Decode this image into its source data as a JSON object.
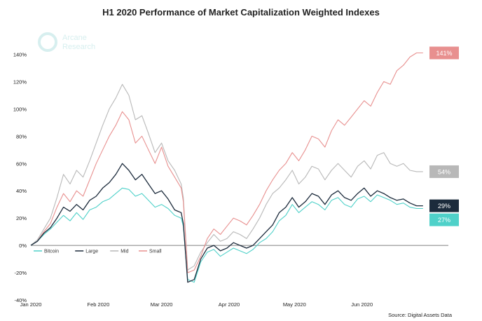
{
  "chart_data": {
    "type": "line",
    "title": "H1 2020 Performance of Market Capitalization Weighted Indexes",
    "source": "Source: Digital Assets Data",
    "watermark": [
      "Arcane",
      "Research"
    ],
    "xlabel": "",
    "ylabel": "",
    "ylim": [
      -40,
      150
    ],
    "yticks": [
      -40,
      -20,
      0,
      20,
      40,
      60,
      80,
      100,
      120,
      140
    ],
    "ytick_labels": [
      "-40%",
      "-20%",
      "0%",
      "20%",
      "40%",
      "60%",
      "80%",
      "100%",
      "120%",
      "140%"
    ],
    "xlim": [
      0,
      182
    ],
    "xticks": [
      0,
      31,
      60,
      91,
      121,
      152
    ],
    "xtick_labels": [
      "Jan 2020",
      "Feb 2020",
      "Mar 2020",
      "Apr 2020",
      "May 2020",
      "Jun 2020"
    ],
    "legend_position": "bottom-left",
    "series": [
      {
        "name": "Bitcoin",
        "color": "#4fd1c9",
        "end_label": "27%",
        "x": [
          0,
          3,
          6,
          9,
          12,
          15,
          18,
          21,
          24,
          27,
          30,
          33,
          36,
          39,
          42,
          45,
          48,
          51,
          54,
          57,
          60,
          63,
          66,
          69,
          70,
          72,
          75,
          78,
          81,
          84,
          87,
          90,
          93,
          96,
          99,
          102,
          105,
          108,
          111,
          114,
          117,
          120,
          123,
          126,
          129,
          132,
          135,
          138,
          141,
          144,
          147,
          150,
          153,
          156,
          159,
          162,
          165,
          168,
          171,
          174,
          177,
          180
        ],
        "values": [
          0,
          3,
          8,
          12,
          17,
          22,
          18,
          24,
          19,
          26,
          28,
          32,
          34,
          38,
          42,
          41,
          36,
          38,
          33,
          28,
          30,
          27,
          22,
          20,
          14,
          -25,
          -27,
          -12,
          -5,
          -3,
          -8,
          -5,
          -2,
          -4,
          -6,
          -3,
          2,
          5,
          10,
          18,
          22,
          30,
          24,
          28,
          32,
          30,
          26,
          33,
          35,
          30,
          28,
          34,
          36,
          32,
          37,
          35,
          33,
          30,
          31,
          28,
          27,
          27
        ]
      },
      {
        "name": "Large",
        "color": "#1c2b3c",
        "end_label": "29%",
        "x": [
          0,
          3,
          6,
          9,
          12,
          15,
          18,
          21,
          24,
          27,
          30,
          33,
          36,
          39,
          42,
          45,
          48,
          51,
          54,
          57,
          60,
          63,
          66,
          69,
          70,
          72,
          75,
          78,
          81,
          84,
          87,
          90,
          93,
          96,
          99,
          102,
          105,
          108,
          111,
          114,
          117,
          120,
          123,
          126,
          129,
          132,
          135,
          138,
          141,
          144,
          147,
          150,
          153,
          156,
          159,
          162,
          165,
          168,
          171,
          174,
          177,
          180
        ],
        "values": [
          0,
          3,
          9,
          13,
          20,
          28,
          25,
          30,
          26,
          33,
          36,
          42,
          46,
          52,
          60,
          55,
          48,
          52,
          45,
          38,
          40,
          34,
          26,
          24,
          16,
          -27,
          -25,
          -10,
          -2,
          0,
          -4,
          -2,
          2,
          0,
          -2,
          0,
          5,
          10,
          15,
          24,
          28,
          35,
          28,
          32,
          38,
          36,
          30,
          37,
          40,
          35,
          33,
          38,
          42,
          36,
          40,
          38,
          35,
          33,
          34,
          31,
          29,
          29
        ]
      },
      {
        "name": "Mid",
        "color": "#b8b8b8",
        "end_label": "54%",
        "x": [
          0,
          3,
          6,
          9,
          12,
          15,
          18,
          21,
          24,
          27,
          30,
          33,
          36,
          39,
          42,
          45,
          48,
          51,
          54,
          57,
          60,
          63,
          66,
          69,
          70,
          72,
          75,
          78,
          81,
          84,
          87,
          90,
          93,
          96,
          99,
          102,
          105,
          108,
          111,
          114,
          117,
          120,
          123,
          126,
          129,
          132,
          135,
          138,
          141,
          144,
          147,
          150,
          153,
          156,
          159,
          162,
          165,
          168,
          171,
          174,
          177,
          180
        ],
        "values": [
          0,
          4,
          12,
          20,
          35,
          52,
          45,
          55,
          50,
          62,
          75,
          88,
          100,
          108,
          118,
          110,
          92,
          95,
          82,
          68,
          75,
          62,
          55,
          45,
          35,
          -18,
          -15,
          -5,
          2,
          8,
          3,
          5,
          10,
          8,
          5,
          12,
          20,
          30,
          38,
          42,
          48,
          55,
          45,
          50,
          58,
          56,
          48,
          55,
          60,
          55,
          50,
          58,
          62,
          56,
          66,
          68,
          60,
          58,
          60,
          55,
          54,
          54
        ]
      },
      {
        "name": "Small",
        "color": "#e8908f",
        "end_label": "141%",
        "x": [
          0,
          3,
          6,
          9,
          12,
          15,
          18,
          21,
          24,
          27,
          30,
          33,
          36,
          39,
          42,
          45,
          48,
          51,
          54,
          57,
          60,
          63,
          66,
          69,
          70,
          72,
          75,
          78,
          81,
          84,
          87,
          90,
          93,
          96,
          99,
          102,
          105,
          108,
          111,
          114,
          117,
          120,
          123,
          126,
          129,
          132,
          135,
          138,
          141,
          144,
          147,
          150,
          153,
          156,
          159,
          162,
          165,
          168,
          171,
          174,
          177,
          180
        ],
        "values": [
          0,
          3,
          10,
          16,
          28,
          38,
          32,
          40,
          36,
          48,
          60,
          70,
          80,
          88,
          98,
          92,
          75,
          80,
          70,
          60,
          72,
          58,
          50,
          42,
          32,
          -20,
          -18,
          -8,
          5,
          12,
          8,
          14,
          20,
          18,
          15,
          22,
          30,
          40,
          48,
          55,
          60,
          68,
          62,
          70,
          80,
          78,
          72,
          84,
          92,
          88,
          94,
          100,
          106,
          102,
          112,
          120,
          118,
          128,
          132,
          138,
          141,
          141
        ]
      }
    ]
  }
}
